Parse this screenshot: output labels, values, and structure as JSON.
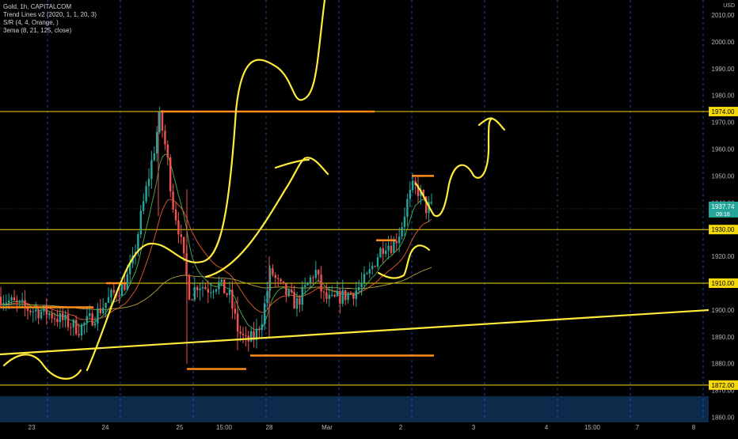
{
  "legend": {
    "title": "Gold, 1h, CAPITALCOM",
    "indicator_1": "Trend Lines v2 (2020, 1, 1, 20, 3)",
    "indicator_2": "S/R (4, 4, Orange, )",
    "indicator_3": "3ema (8, 21, 125, close)"
  },
  "currency_label": "USD",
  "colors": {
    "background": "#000000",
    "up_candle": "#26a69a",
    "down_candle": "#ef5350",
    "sr_line": "#f5d90a",
    "sr_box": "#ff8c1a",
    "drawing": "#ffeb3b",
    "axis_text": "#b2b5be",
    "current_price_bg": "#26a69a",
    "session_line": "#2962ff",
    "bottom_band": "#0d2a4a",
    "ema_fast": "#4caf50",
    "ema_mid": "#e65c2e",
    "ema_slow": "#b8a23a"
  },
  "chart_data": {
    "type": "candlestick",
    "title": "Gold, 1h, CAPITALCOM",
    "y_axis": {
      "range": [
        1857,
        2014
      ],
      "ticks": [
        1860,
        1870,
        1880,
        1890,
        1900,
        1910,
        1920,
        1930,
        1940,
        1950,
        1960,
        1970,
        1980,
        1990,
        2000,
        2010
      ],
      "tick_labels": [
        "1860.00",
        "1870.00",
        "1880.00",
        "1890.00",
        "1900.00",
        "1910.00",
        "1920.00",
        "1930.00",
        "1940.00",
        "1950.00",
        "1960.00",
        "1970.00",
        "1980.00",
        "1990.00",
        "2000.00",
        "2010.00"
      ]
    },
    "x_axis": {
      "labels": [
        "23",
        "24",
        "25",
        "15:00",
        "28",
        "Mar",
        "2",
        "3",
        "4",
        "15:00",
        "7",
        "8"
      ]
    },
    "support_resistance_levels": [
      {
        "value": 1974,
        "label": "1974.00"
      },
      {
        "value": 1930,
        "label": "1930.00"
      },
      {
        "value": 1910,
        "label": "1910.00"
      },
      {
        "value": 1872,
        "label": "1872.00"
      }
    ],
    "current_price": {
      "value": 1937.74,
      "label": "1937.74",
      "countdown": "09:16"
    },
    "grid": false
  }
}
